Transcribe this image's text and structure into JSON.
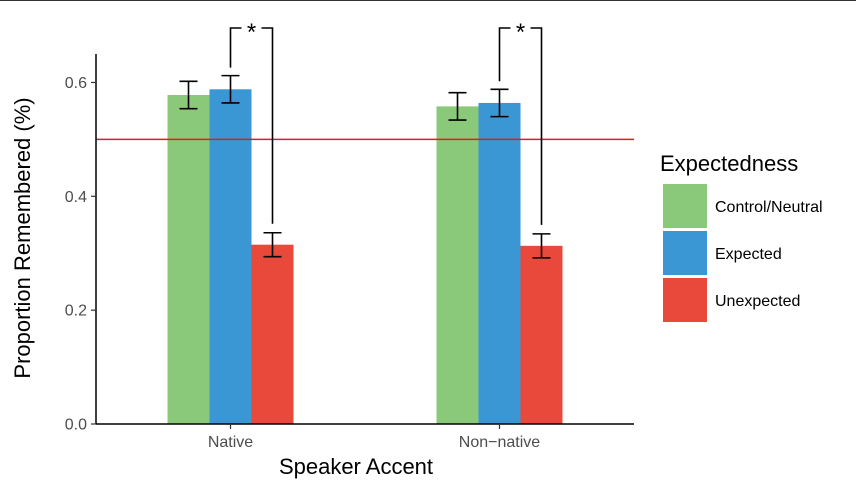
{
  "chart_data": {
    "type": "bar",
    "title": "",
    "xlabel": "Speaker Accent",
    "ylabel": "Proportion Remembered (%)",
    "categories": [
      "Native",
      "Non−native"
    ],
    "ylim": [
      0,
      0.65
    ],
    "yticks": [
      "0.0",
      "0.2",
      "0.4",
      "0.6"
    ],
    "ytick_values": [
      0,
      0.2,
      0.4,
      0.6
    ],
    "legend_title": "Expectedness",
    "legend_position": "right",
    "grid": false,
    "reference_line": {
      "value": 0.5,
      "color": "#e41a1c"
    },
    "series": [
      {
        "name": "Control/Neutral",
        "color": "#8bc97a",
        "values": [
          0.578,
          0.558
        ],
        "error": [
          0.024,
          0.024
        ]
      },
      {
        "name": "Expected",
        "color": "#3a97d4",
        "values": [
          0.588,
          0.564
        ],
        "error": [
          0.024,
          0.024
        ]
      },
      {
        "name": "Unexpected",
        "color": "#e8493a",
        "values": [
          0.315,
          0.313
        ],
        "error": [
          0.021,
          0.021
        ]
      }
    ],
    "significance": [
      {
        "category": 0,
        "from_series": 1,
        "to_series": 2,
        "label": "*"
      },
      {
        "category": 1,
        "from_series": 1,
        "to_series": 2,
        "label": "*"
      }
    ]
  }
}
